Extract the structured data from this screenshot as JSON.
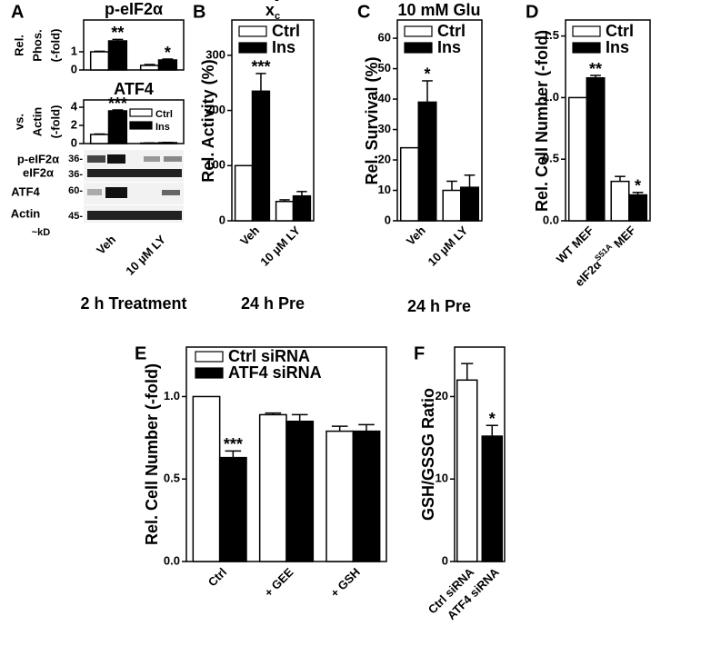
{
  "chart_data": [
    {
      "type": "bar",
      "label": "A",
      "title": "p-eIF2α",
      "ylabel": [
        "Rel.",
        "Phos.",
        "(-fold)"
      ],
      "categories": [
        null,
        null
      ],
      "ylim": [
        0,
        2.75
      ],
      "yticks": [
        0,
        1
      ],
      "series": [
        {
          "color": "#ffffff",
          "values": [
            1.0,
            0.25
          ],
          "errors": [
            0.03,
            0.05
          ]
        },
        {
          "color": "#000000",
          "values": [
            1.6,
            0.55
          ],
          "errors": [
            0.08,
            0.05
          ],
          "significance": [
            "**",
            "*"
          ]
        }
      ]
    },
    {
      "type": "bar",
      "title": "ATF4",
      "ylabel": [
        "vs.",
        "Actin",
        "(-fold)"
      ],
      "footer": "2 h Treatment",
      "categories": [
        "Veh",
        "10 µM LY"
      ],
      "ylim": [
        0,
        4.8
      ],
      "yticks": [
        0,
        2,
        4
      ],
      "series": [
        {
          "name": "Ctrl",
          "color": "#ffffff",
          "values": [
            1.0,
            0.05
          ],
          "errors": [
            0.05,
            0.02
          ]
        },
        {
          "name": "Ins",
          "color": "#000000",
          "values": [
            3.6,
            0.1
          ],
          "errors": [
            0.1,
            0.02
          ],
          "significance": [
            "***",
            null
          ]
        }
      ]
    },
    {
      "type": "bar",
      "label": "B",
      "title": "x",
      "title_sub": "c",
      "title_sup": "-",
      "ylabel": "Rel. Activity (%)",
      "footer": "24 h Pre",
      "categories": [
        "Veh",
        "10 µM LY"
      ],
      "ylim": [
        0,
        364
      ],
      "yticks": [
        0,
        100,
        200,
        300
      ],
      "series": [
        {
          "name": "Ctrl",
          "color": "#ffffff",
          "values": [
            100,
            35
          ],
          "errors": [
            null,
            3
          ]
        },
        {
          "name": "Ins",
          "color": "#000000",
          "values": [
            235,
            45
          ],
          "errors": [
            32,
            8
          ],
          "significance": [
            "***",
            null
          ]
        }
      ]
    },
    {
      "type": "bar",
      "label": "C",
      "title": "10 mM Glu",
      "ylabel": "Rel. Survival (%)",
      "footer": "24 h Pre",
      "categories": [
        "Veh",
        "10 µM LY"
      ],
      "ylim": [
        0,
        66
      ],
      "yticks": [
        0,
        10,
        20,
        30,
        40,
        50,
        60
      ],
      "series": [
        {
          "name": "Ctrl",
          "color": "#ffffff",
          "values": [
            24,
            10
          ],
          "errors": [
            null,
            3
          ]
        },
        {
          "name": "Ins",
          "color": "#000000",
          "values": [
            39,
            11
          ],
          "errors": [
            7,
            4
          ],
          "significance": [
            "*",
            null
          ]
        }
      ]
    },
    {
      "type": "bar",
      "label": "D",
      "ylabel": "Rel. Cell Number (-fold)",
      "categories": [
        "WT MEF",
        [
          "eIF2α",
          "S51A",
          " MEF"
        ]
      ],
      "ylim": [
        0,
        1.63
      ],
      "yticks": [
        {
          "value": 0,
          "label": "0.0"
        },
        0.5,
        {
          "value": 1,
          "label": "1.0"
        },
        1.5
      ],
      "series": [
        {
          "name": "Ctrl",
          "color": "#ffffff",
          "values": [
            1.0,
            0.32
          ],
          "errors": [
            null,
            0.04
          ]
        },
        {
          "name": "Ins",
          "color": "#000000",
          "values": [
            1.16,
            0.21
          ],
          "errors": [
            0.02,
            0.02
          ],
          "significance": [
            "**",
            "*"
          ]
        }
      ]
    },
    {
      "type": "bar",
      "label": "E",
      "ylabel": "Rel. Cell Number (-fold)",
      "categories": [
        "Ctrl",
        "+ GEE",
        "+ GSH"
      ],
      "ylim": [
        0,
        1.3
      ],
      "yticks": [
        {
          "value": 0,
          "label": "0.0"
        },
        0.5,
        {
          "value": 1,
          "label": "1.0"
        }
      ],
      "series": [
        {
          "name": "Ctrl  siRNA",
          "color": "#ffffff",
          "values": [
            1.0,
            0.89,
            0.79
          ],
          "errors": [
            null,
            0.01,
            0.03
          ]
        },
        {
          "name": "ATF4 siRNA",
          "color": "#000000",
          "values": [
            0.63,
            0.85,
            0.79
          ],
          "errors": [
            0.04,
            0.04,
            0.04
          ],
          "significance": [
            "***",
            null,
            null
          ]
        }
      ]
    },
    {
      "type": "bar",
      "label": "F",
      "ylabel": "GSH/GSSG Ratio",
      "categories": [
        "Ctrl siRNA",
        "ATF4 siRNA"
      ],
      "ylim": [
        0,
        26
      ],
      "yticks": [
        0,
        10,
        20
      ],
      "series": [
        {
          "colors": [
            "#ffffff",
            "#000000"
          ],
          "values": [
            22,
            15.2
          ],
          "errors": [
            2,
            1.3
          ],
          "significance": [
            null,
            "*"
          ]
        }
      ]
    }
  ],
  "blot": {
    "labels": [
      "p-eIF2α",
      "eIF2α",
      "ATF4",
      "Actin"
    ],
    "markers": [
      "36-",
      "36-",
      "60-",
      "45-"
    ],
    "unit": "~kD"
  }
}
